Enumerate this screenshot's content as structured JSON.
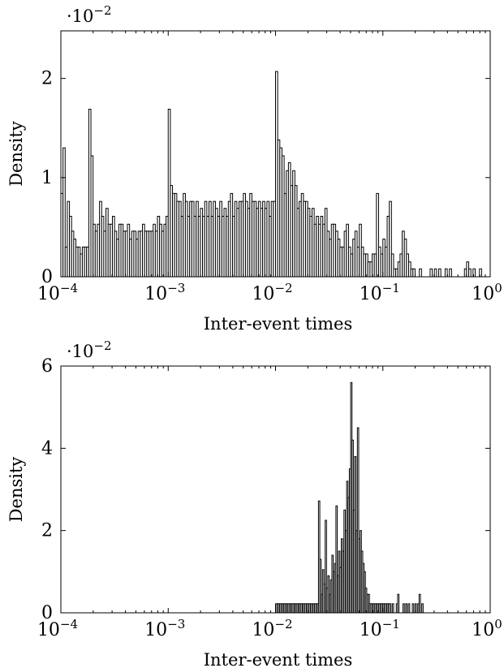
{
  "chart_data": [
    {
      "type": "bar",
      "xlabel": "Inter-event times",
      "ylabel": "Density",
      "x_scale": "log",
      "xlim": [
        0.0001,
        1
      ],
      "ylim": [
        0,
        0.0248
      ],
      "y_scale_factor": "·10^{-2}",
      "y_scale_base": "·10",
      "y_scale_exponent": "−2",
      "x_ticks": [
        {
          "value": 0.0001,
          "base": "10",
          "exp": "−4"
        },
        {
          "value": 0.001,
          "base": "10",
          "exp": "−3"
        },
        {
          "value": 0.01,
          "base": "10",
          "exp": "−2"
        },
        {
          "value": 0.1,
          "base": "10",
          "exp": "−1"
        },
        {
          "value": 1,
          "base": "10",
          "exp": "0"
        }
      ],
      "y_ticks": [
        {
          "value": 0,
          "label": "0"
        },
        {
          "value": 0.01,
          "label": "1"
        },
        {
          "value": 0.02,
          "label": "2"
        }
      ],
      "bins_per_decade": 50,
      "bin_start": 0.0001,
      "values": [
        0.0084,
        0.013,
        0.003,
        0.0076,
        0.0061,
        0.0046,
        0.0038,
        0.003,
        0.003,
        0.0023,
        0.003,
        0.003,
        0.003,
        0.0169,
        0.0122,
        0.0053,
        0.0046,
        0.0053,
        0.0076,
        0.0061,
        0.0046,
        0.0069,
        0.0053,
        0.0053,
        0.0061,
        0.0046,
        0.0038,
        0.0053,
        0.0053,
        0.0046,
        0.0046,
        0.0053,
        0.0038,
        0.0046,
        0.0046,
        0.0038,
        0.0046,
        0.0046,
        0.0053,
        0.0046,
        0.0046,
        0.0046,
        0.0046,
        0.0053,
        0.0046,
        0.0061,
        0.0053,
        0.0046,
        0.0053,
        0.0061,
        0.0169,
        0.0092,
        0.0084,
        0.0084,
        0.0076,
        0.0076,
        0.0061,
        0.0084,
        0.0076,
        0.0061,
        0.0076,
        0.0076,
        0.0061,
        0.0076,
        0.0061,
        0.0069,
        0.0061,
        0.0076,
        0.0061,
        0.0076,
        0.0061,
        0.0076,
        0.0069,
        0.0061,
        0.0076,
        0.0061,
        0.0069,
        0.0061,
        0.0076,
        0.0084,
        0.0061,
        0.0076,
        0.0069,
        0.0076,
        0.0076,
        0.0084,
        0.0076,
        0.0069,
        0.0084,
        0.0076,
        0.0076,
        0.0069,
        0.0076,
        0.0069,
        0.0076,
        0.0069,
        0.0076,
        0.0061,
        0.0076,
        0.0076,
        0.0207,
        0.0138,
        0.013,
        0.0122,
        0.0084,
        0.0107,
        0.0115,
        0.0092,
        0.0107,
        0.0092,
        0.0069,
        0.0076,
        0.0084,
        0.0076,
        0.0076,
        0.0069,
        0.0061,
        0.0069,
        0.0053,
        0.0061,
        0.0053,
        0.0061,
        0.0053,
        0.0069,
        0.0046,
        0.0038,
        0.0053,
        0.0053,
        0.0046,
        0.0038,
        0.003,
        0.003,
        0.0046,
        0.0053,
        0.003,
        0.0023,
        0.0038,
        0.0046,
        0.003,
        0.0053,
        0.003,
        0.0023,
        0.0023,
        0.0015,
        0.0015,
        0.0023,
        0.0023,
        0.0084,
        0.003,
        0.0023,
        0.0038,
        0.003,
        0.0061,
        0.0076,
        0.0023,
        0.0008,
        0.0008,
        0.0015,
        0.0023,
        0.0046,
        0.0038,
        0.0023,
        0.0015,
        0.0008,
        0.0008,
        0.0,
        0.0,
        0.0008,
        0.0,
        0.0,
        0.0,
        0.0,
        0.0008,
        0.0,
        0.0008,
        0.0,
        0.0008,
        0.0,
        0.0,
        0.0008,
        0.0,
        0.0008,
        0.0,
        0.0,
        0.0,
        0.0,
        0.0,
        0.0,
        0.0008,
        0.0015,
        0.0008,
        0.0,
        0.0008,
        0.0,
        0.0,
        0.0008,
        0.0,
        0.0,
        0.0,
        0.0
      ]
    },
    {
      "type": "bar",
      "xlabel": "Inter-event times",
      "ylabel": "Density",
      "x_scale": "log",
      "xlim": [
        0.0001,
        1
      ],
      "ylim": [
        0,
        0.06
      ],
      "y_scale_factor": "·10^{-2}",
      "y_scale_base": "·10",
      "y_scale_exponent": "−2",
      "x_ticks": [
        {
          "value": 0.0001,
          "base": "10",
          "exp": "−4"
        },
        {
          "value": 0.001,
          "base": "10",
          "exp": "−3"
        },
        {
          "value": 0.01,
          "base": "10",
          "exp": "−2"
        },
        {
          "value": 0.1,
          "base": "10",
          "exp": "−1"
        },
        {
          "value": 1,
          "base": "10",
          "exp": "0"
        }
      ],
      "y_ticks": [
        {
          "value": 0,
          "label": "0"
        },
        {
          "value": 0.02,
          "label": "2"
        },
        {
          "value": 0.04,
          "label": "4"
        },
        {
          "value": 0.06,
          "label": "6"
        }
      ],
      "bins_per_decade": 80,
      "bin_start": 0.0001,
      "values": [
        0,
        0,
        0,
        0,
        0,
        0,
        0,
        0,
        0,
        0,
        0,
        0,
        0,
        0,
        0,
        0,
        0,
        0,
        0,
        0,
        0,
        0,
        0,
        0,
        0,
        0,
        0,
        0,
        0,
        0,
        0,
        0,
        0,
        0,
        0,
        0,
        0,
        0,
        0,
        0,
        0,
        0,
        0,
        0,
        0,
        0,
        0,
        0,
        0,
        0,
        0,
        0,
        0,
        0,
        0,
        0,
        0,
        0,
        0,
        0,
        0,
        0,
        0,
        0,
        0,
        0,
        0,
        0,
        0,
        0,
        0,
        0,
        0,
        0,
        0,
        0,
        0,
        0,
        0,
        0,
        0,
        0,
        0,
        0,
        0,
        0,
        0,
        0,
        0,
        0,
        0,
        0,
        0,
        0,
        0,
        0,
        0,
        0,
        0,
        0,
        0,
        0,
        0,
        0,
        0,
        0,
        0,
        0,
        0,
        0,
        0,
        0,
        0,
        0,
        0,
        0,
        0,
        0,
        0,
        0,
        0,
        0,
        0,
        0,
        0,
        0,
        0,
        0,
        0,
        0,
        0,
        0,
        0,
        0,
        0,
        0,
        0,
        0,
        0,
        0,
        0,
        0,
        0,
        0,
        0,
        0,
        0,
        0,
        0,
        0,
        0,
        0,
        0,
        0,
        0,
        0,
        0,
        0,
        0,
        0,
        0.0022,
        0.0022,
        0.0022,
        0.0022,
        0.0022,
        0.0022,
        0.0022,
        0.0022,
        0.0022,
        0.0022,
        0.0022,
        0.0022,
        0.0022,
        0.0022,
        0.0022,
        0.0022,
        0.0022,
        0.0022,
        0.0022,
        0.0022,
        0.0022,
        0.0022,
        0.0022,
        0.0022,
        0.0022,
        0.0022,
        0.0022,
        0.0022,
        0.0022,
        0.0022,
        0.0022,
        0.0022,
        0.0272,
        0.013,
        0.0045,
        0.0105,
        0.007,
        0.0225,
        0.006,
        0.009,
        0.0045,
        0.008,
        0.014,
        0.01,
        0.012,
        0.026,
        0.009,
        0.015,
        0.011,
        0.018,
        0.015,
        0.025,
        0.02,
        0.032,
        0.028,
        0.035,
        0.056,
        0.042,
        0.025,
        0.038,
        0.02,
        0.045,
        0.018,
        0.02,
        0.015,
        0.012,
        0.01,
        0.006,
        0.0045,
        0.0045,
        0.0022,
        0.0022,
        0.0022,
        0.0022,
        0.0022,
        0.0022,
        0.0022,
        0.0022,
        0.0022,
        0.0022,
        0.0022,
        0.0022,
        0.0022,
        0.0022,
        0.0022,
        0.0022,
        0.0,
        0.0022,
        0.0,
        0.0,
        0.0022,
        0.0045,
        0.0,
        0.0,
        0.0,
        0.0022,
        0.0,
        0.0022,
        0.0,
        0.0022,
        0.0,
        0.0,
        0.0022,
        0.0,
        0.0022,
        0.0,
        0.0022,
        0.0045,
        0.0,
        0.0022,
        0.0,
        0.0
      ]
    }
  ]
}
